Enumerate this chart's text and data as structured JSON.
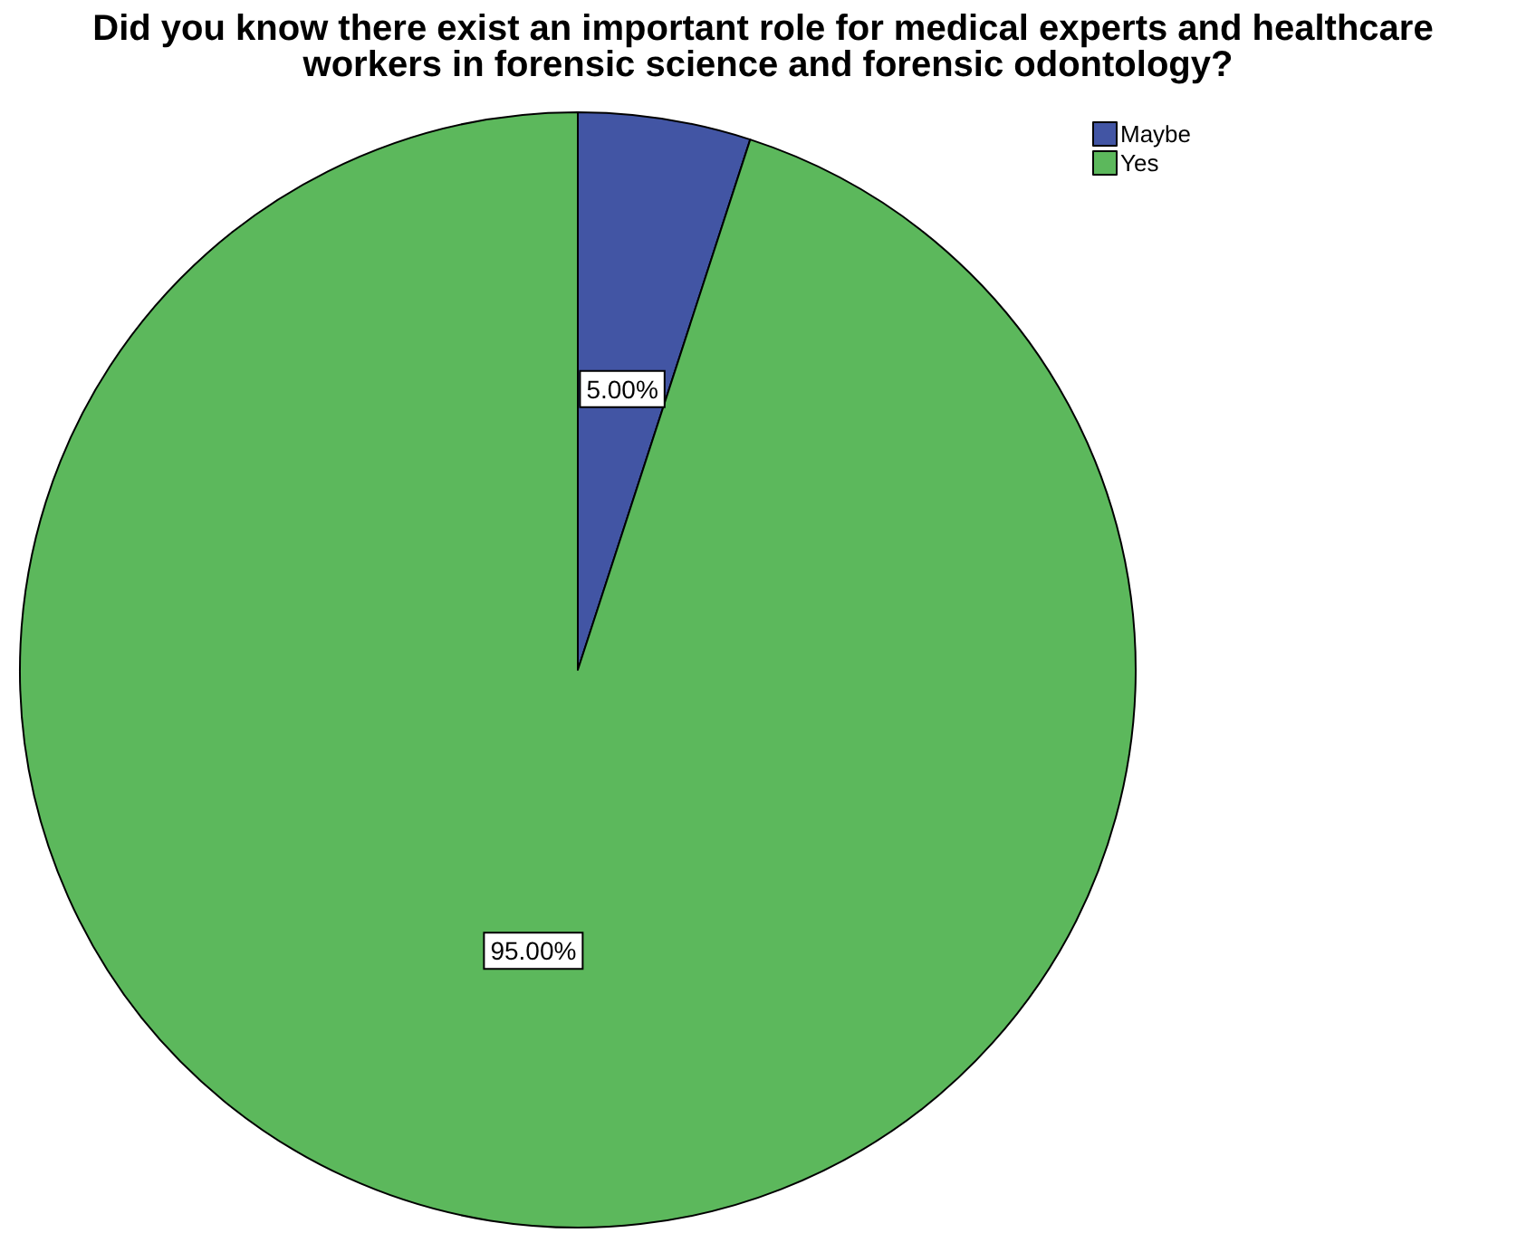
{
  "chart_data": {
    "type": "pie",
    "title": "Did you know there exist an important role for medical experts and healthcare workers in forensic science and forensic odontology?",
    "categories": [
      "Maybe",
      "Yes"
    ],
    "values": [
      5,
      95
    ],
    "colors": [
      "#4255a4",
      "#5cb85c"
    ],
    "value_labels": [
      "5.00%",
      "95.00%"
    ],
    "legend": "top right"
  }
}
